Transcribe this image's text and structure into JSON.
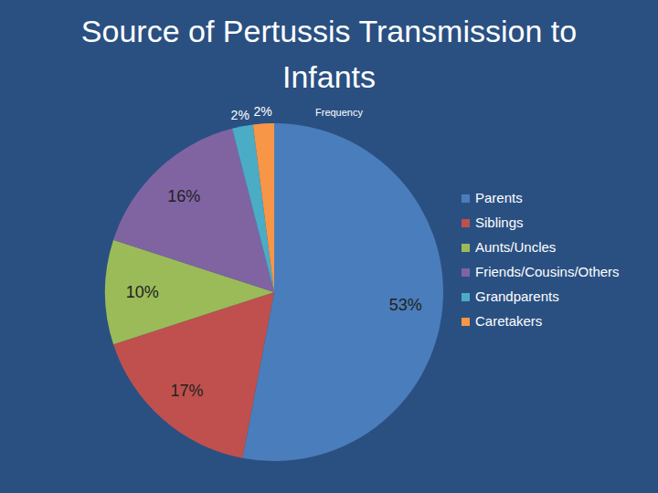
{
  "chart_data": {
    "type": "pie",
    "title": "Source of Pertussis Transmission to Infants",
    "series_name": "Frequency",
    "categories": [
      "Parents",
      "Siblings",
      "Aunts/Uncles",
      "Friends/Cousins/Others",
      "Grandparents",
      "Caretakers"
    ],
    "values": [
      53,
      17,
      10,
      16,
      2,
      2
    ],
    "colors": [
      "#4a7dbb",
      "#c0504d",
      "#9bbb59",
      "#8064a2",
      "#4bacc6",
      "#f79646"
    ],
    "data_labels": true,
    "legend": "right"
  }
}
